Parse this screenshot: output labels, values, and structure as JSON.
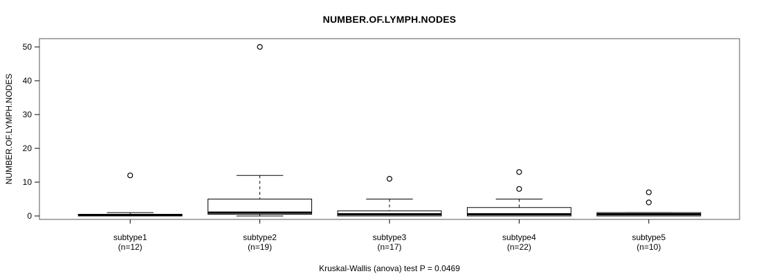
{
  "chart_data": {
    "type": "boxplot",
    "title": "NUMBER.OF.LYMPH.NODES",
    "ylabel": "NUMBER.OF.LYMPH.NODES",
    "caption": "Kruskal-Wallis (anova) test P = 0.0469",
    "xlabel": "",
    "ylim": [
      0,
      50
    ],
    "yticks": [
      0,
      10,
      20,
      30,
      40,
      50
    ],
    "grid": false,
    "legend": null,
    "categories": [
      "subtype1",
      "subtype2",
      "subtype3",
      "subtype4",
      "subtype5"
    ],
    "groups": [
      {
        "label": "subtype1",
        "sublabel": "(n=12)",
        "n": 12,
        "whisker_low": 0,
        "q1": 0,
        "median": 0.25,
        "q3": 0.5,
        "whisker_high": 1,
        "outliers": [
          12
        ]
      },
      {
        "label": "subtype2",
        "sublabel": "(n=19)",
        "n": 19,
        "whisker_low": 0,
        "q1": 0.5,
        "median": 1,
        "q3": 5,
        "whisker_high": 12,
        "outliers": [
          50
        ]
      },
      {
        "label": "subtype3",
        "sublabel": "(n=17)",
        "n": 17,
        "whisker_low": 0,
        "q1": 0,
        "median": 0.5,
        "q3": 1.5,
        "whisker_high": 5,
        "outliers": [
          11
        ]
      },
      {
        "label": "subtype4",
        "sublabel": "(n=22)",
        "n": 22,
        "whisker_low": 0,
        "q1": 0,
        "median": 0.5,
        "q3": 2.5,
        "whisker_high": 5,
        "outliers": [
          8,
          13
        ]
      },
      {
        "label": "subtype5",
        "sublabel": "(n=10)",
        "n": 10,
        "whisker_low": 0,
        "q1": 0,
        "median": 0.5,
        "q3": 1,
        "whisker_high": 1,
        "outliers": [
          4,
          7
        ]
      }
    ],
    "colors": {
      "box_fill": "#ffffff",
      "box_line": "#000000",
      "median_line": "#000000",
      "whisker_line": "#000000",
      "outlier_stroke": "#000000",
      "frame": "#555555",
      "text": "#000000"
    }
  }
}
